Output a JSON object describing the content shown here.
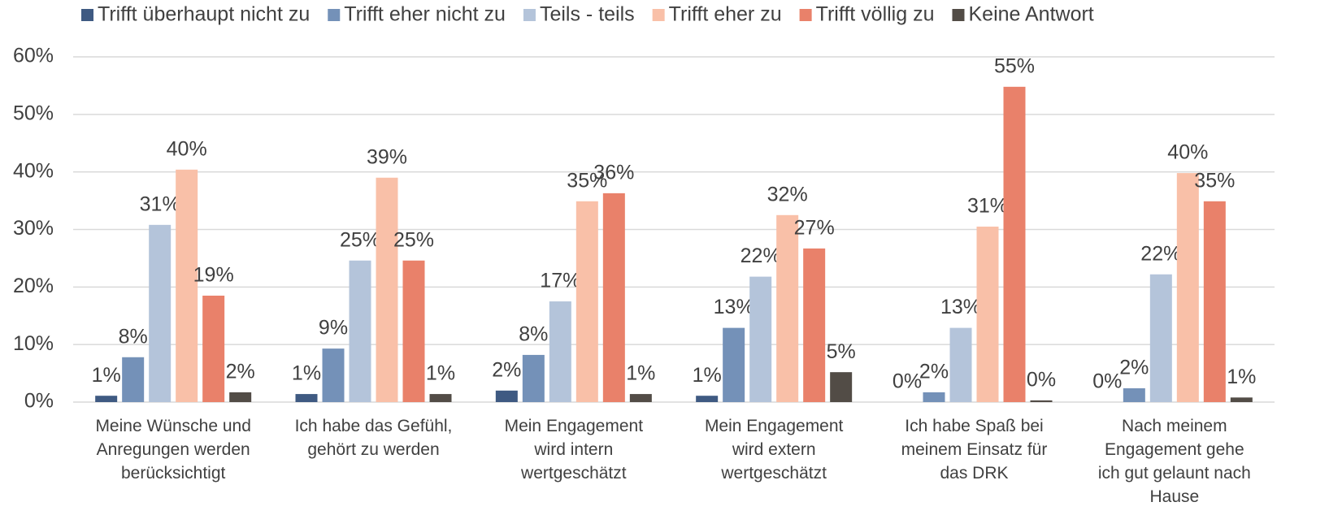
{
  "chart_data": {
    "type": "bar",
    "categories": [
      "Meine Wünsche und\nAnregungen werden\nberücksichtigt",
      "Ich habe das Gefühl,\ngehört zu werden",
      "Mein Engagement\nwird intern\nwertgeschätzt",
      "Mein Engagement\nwird extern\nwertgeschätzt",
      "Ich habe Spaß bei\nmeinem Einsatz für\ndas DRK",
      "Nach meinem\nEngagement gehe\nich gut gelaunt nach\nHause"
    ],
    "series": [
      {
        "name": "Trifft überhaupt nicht zu",
        "color": "#3f5a82",
        "values": [
          1.1,
          1.4,
          2.0,
          1.1,
          0,
          0
        ],
        "value_labels": [
          "1%",
          "1%",
          "2%",
          "1%",
          "0%",
          "0%"
        ]
      },
      {
        "name": "Trifft eher nicht zu",
        "color": "#7491b8",
        "values": [
          7.8,
          9.3,
          8.2,
          12.9,
          1.7,
          2.4
        ],
        "value_labels": [
          "8%",
          "9%",
          "8%",
          "13%",
          "2%",
          "2%"
        ]
      },
      {
        "name": "Teils - teils",
        "color": "#b4c4da",
        "values": [
          30.8,
          24.6,
          17.5,
          21.8,
          12.9,
          22.2
        ],
        "value_labels": [
          "31%",
          "25%",
          "17%",
          "22%",
          "13%",
          "22%"
        ]
      },
      {
        "name": "Trifft eher zu",
        "color": "#f9c0a8",
        "values": [
          40.4,
          39.0,
          34.9,
          32.5,
          30.5,
          39.8
        ],
        "value_labels": [
          "40%",
          "39%",
          "35%",
          "32%",
          "31%",
          "40%"
        ]
      },
      {
        "name": "Trifft völlig zu",
        "color": "#e9816a",
        "values": [
          18.5,
          24.6,
          36.3,
          26.7,
          54.8,
          34.9
        ],
        "value_labels": [
          "19%",
          "25%",
          "36%",
          "27%",
          "55%",
          "35%"
        ]
      },
      {
        "name": "Keine Antwort",
        "color": "#524c46",
        "values": [
          1.7,
          1.4,
          1.4,
          5.2,
          0.3,
          0.8
        ],
        "value_labels": [
          "2%",
          "1%",
          "1%",
          "5%",
          "0%",
          "1%"
        ]
      }
    ],
    "ylim": [
      0,
      60
    ],
    "yticks": [
      {
        "value": 0,
        "label": "0%"
      },
      {
        "value": 10,
        "label": "10%"
      },
      {
        "value": 20,
        "label": "20%"
      },
      {
        "value": 30,
        "label": "30%"
      },
      {
        "value": 40,
        "label": "40%"
      },
      {
        "value": 50,
        "label": "50%"
      },
      {
        "value": 60,
        "label": "60%"
      }
    ],
    "grid": true,
    "legend": "top"
  }
}
